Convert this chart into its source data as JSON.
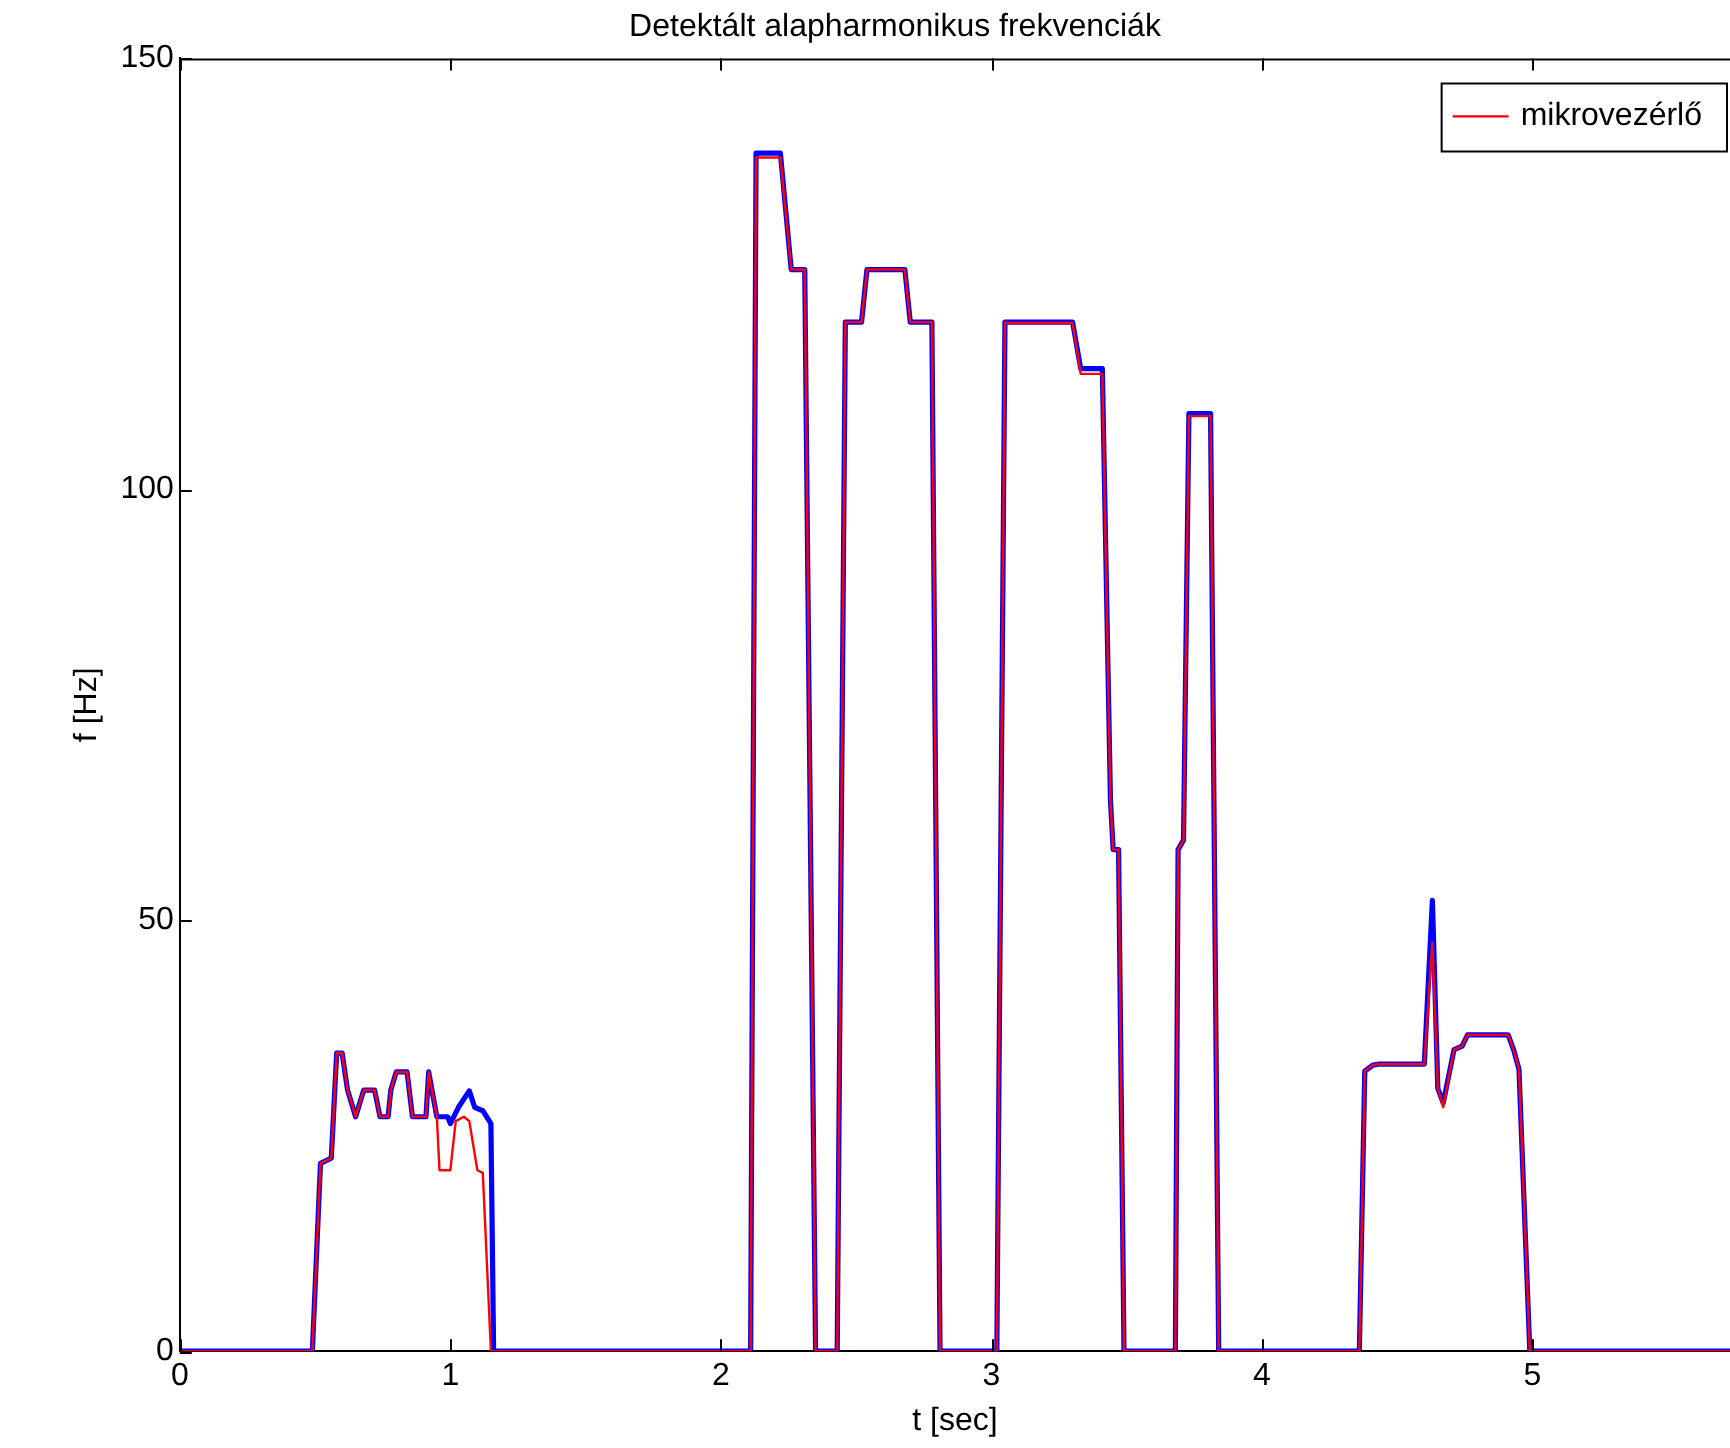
{
  "chart_data": {
    "type": "line",
    "title": "Detektált alapharmonikus frekvenciák",
    "xlabel": "t [sec]",
    "ylabel": "f [Hz]",
    "xlim": [
      0,
      5.73
    ],
    "xticks": [
      0,
      1,
      2,
      3,
      4,
      5
    ],
    "ylim": [
      0,
      150
    ],
    "yticks": [
      0,
      50,
      100,
      150
    ],
    "grid": false,
    "legend": "top right",
    "marker": "none",
    "line_style": "solid",
    "series": [
      {
        "color": "#0000ff",
        "x": [
          0,
          0.49,
          0.52,
          0.56,
          0.58,
          0.6,
          0.62,
          0.65,
          0.68,
          0.72,
          0.74,
          0.77,
          0.78,
          0.8,
          0.84,
          0.86,
          0.91,
          0.92,
          0.95,
          0.99,
          1.0,
          1.03,
          1.07,
          1.09,
          1.12,
          1.15,
          1.16,
          2.11,
          2.13,
          2.22,
          2.26,
          2.31,
          2.35,
          2.43,
          2.46,
          2.52,
          2.54,
          2.68,
          2.7,
          2.78,
          2.81,
          3.02,
          3.05,
          3.3,
          3.33,
          3.41,
          3.44,
          3.45,
          3.47,
          3.49,
          3.68,
          3.69,
          3.71,
          3.73,
          3.81,
          3.84,
          4.36,
          4.38,
          4.41,
          4.43,
          4.6,
          4.63,
          4.65,
          4.67,
          4.71,
          4.74,
          4.76,
          4.91,
          4.93,
          4.95,
          4.99,
          5.73
        ],
        "values": [
          0,
          0,
          21.8,
          22.4,
          34.6,
          34.6,
          30.3,
          27.2,
          30.3,
          30.3,
          27.2,
          27.2,
          30.3,
          32.4,
          32.4,
          27.2,
          27.2,
          32.4,
          27.2,
          27.2,
          26.4,
          28.3,
          30.2,
          28.3,
          27.9,
          26.4,
          0,
          0,
          139,
          139,
          125.5,
          125.5,
          0,
          0,
          119.4,
          119.4,
          125.5,
          125.5,
          119.4,
          119.4,
          0,
          0,
          119.4,
          119.4,
          114,
          114,
          63.9,
          58.2,
          58.2,
          0,
          0,
          58.2,
          59.3,
          108.8,
          108.8,
          0,
          0,
          32.5,
          33.2,
          33.3,
          33.3,
          52.3,
          30.5,
          28.8,
          35,
          35.4,
          36.7,
          36.7,
          35,
          32.7,
          0,
          0
        ]
      },
      {
        "name": "mikrovezérlő",
        "color": "#ff0000",
        "x": [
          0,
          0.49,
          0.52,
          0.56,
          0.58,
          0.6,
          0.62,
          0.65,
          0.68,
          0.72,
          0.74,
          0.77,
          0.78,
          0.8,
          0.84,
          0.86,
          0.91,
          0.92,
          0.95,
          0.96,
          1.0,
          1.02,
          1.05,
          1.07,
          1.1,
          1.12,
          1.15,
          2.11,
          2.13,
          2.22,
          2.26,
          2.31,
          2.35,
          2.43,
          2.46,
          2.52,
          2.54,
          2.68,
          2.7,
          2.78,
          2.81,
          3.02,
          3.05,
          3.3,
          3.33,
          3.41,
          3.44,
          3.45,
          3.47,
          3.49,
          3.68,
          3.69,
          3.71,
          3.73,
          3.81,
          3.84,
          4.36,
          4.38,
          4.41,
          4.43,
          4.6,
          4.63,
          4.65,
          4.67,
          4.71,
          4.74,
          4.76,
          4.91,
          4.93,
          4.95,
          4.99,
          5.73
        ],
        "values": [
          0,
          0,
          21.8,
          22.4,
          34.6,
          34.6,
          30.3,
          27.2,
          30.3,
          30.3,
          27.2,
          27.2,
          30.3,
          32.4,
          32.4,
          27.2,
          27.2,
          32.4,
          27.2,
          21.0,
          21.0,
          26.7,
          27.2,
          26.7,
          21.0,
          20.7,
          0,
          0,
          138.5,
          138.5,
          125.5,
          125.5,
          0,
          0,
          119.4,
          119.4,
          125.5,
          125.5,
          119.4,
          119.4,
          0,
          0,
          119.3,
          119.3,
          113.4,
          113.4,
          63.9,
          58.2,
          58.2,
          0,
          0,
          58.2,
          59.3,
          108.5,
          108.5,
          0,
          0,
          32.5,
          33.2,
          33.3,
          33.3,
          47.4,
          30.5,
          28.3,
          35,
          35.4,
          36.7,
          36.7,
          35,
          32.7,
          0,
          0
        ]
      }
    ]
  }
}
